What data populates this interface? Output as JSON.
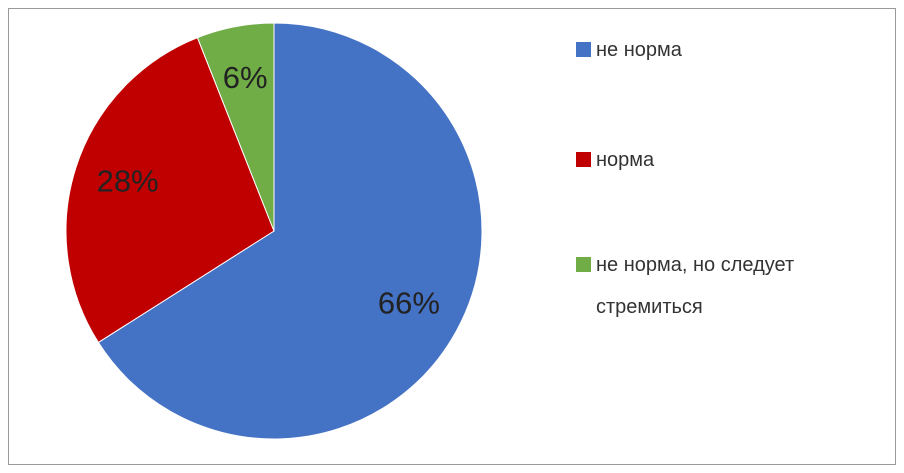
{
  "chart_data": {
    "type": "pie",
    "categories": [
      "не норма",
      "норма",
      "не норма, но следует стремиться"
    ],
    "values": [
      66,
      28,
      6
    ],
    "value_labels": [
      "66%",
      "28%",
      "6%"
    ],
    "colors": [
      "#4472c4",
      "#c00000",
      "#70ad47"
    ],
    "legend": "right"
  }
}
